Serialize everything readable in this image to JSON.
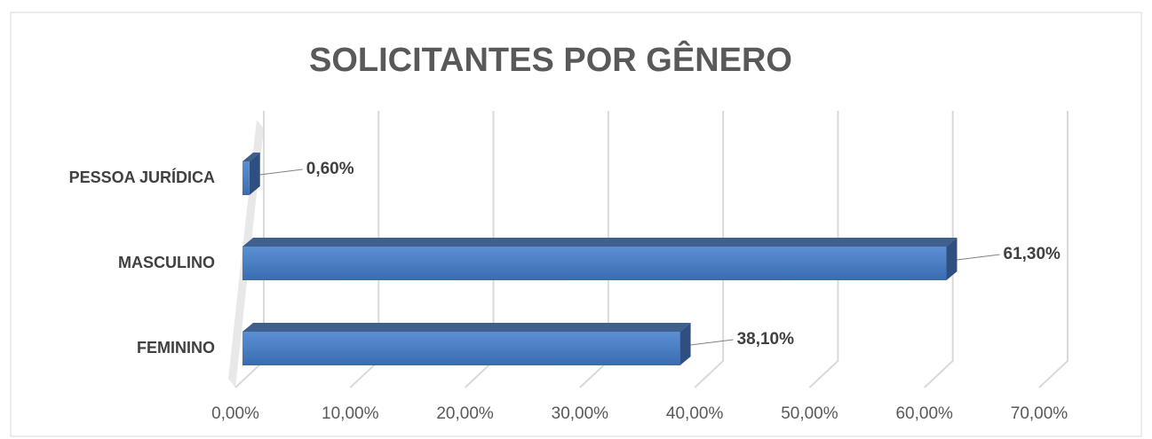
{
  "chart_data": {
    "type": "bar",
    "orientation": "horizontal",
    "title": "SOLICITANTES POR GÊNERO",
    "categories": [
      "PESSOA JURÍDICA",
      "MASCULINO",
      "FEMININO"
    ],
    "values": [
      0.6,
      61.3,
      38.1
    ],
    "value_labels": [
      "0,60%",
      "61,30%",
      "38,10%"
    ],
    "color": "#4a7fc4",
    "xlim": [
      0,
      70
    ],
    "xticks": [
      {
        "value": 0,
        "label": "0,00%"
      },
      {
        "value": 10,
        "label": "10,00%"
      },
      {
        "value": 20,
        "label": "20,00%"
      },
      {
        "value": 30,
        "label": "30,00%"
      },
      {
        "value": 40,
        "label": "40,00%"
      },
      {
        "value": 50,
        "label": "50,00%"
      },
      {
        "value": 60,
        "label": "60,00%"
      },
      {
        "value": 70,
        "label": "70,00%"
      }
    ],
    "grid": true
  }
}
